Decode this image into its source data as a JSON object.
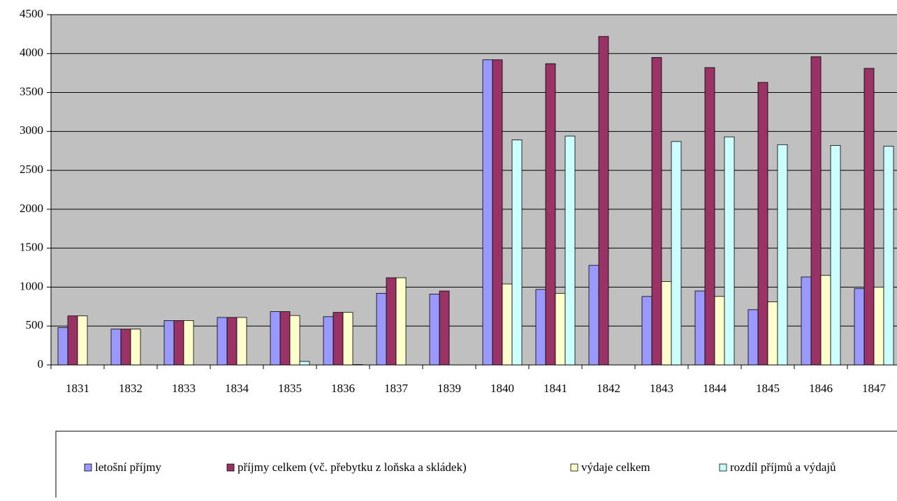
{
  "chart_data": {
    "type": "bar",
    "categories": [
      "1831",
      "1832",
      "1833",
      "1834",
      "1835",
      "1836",
      "1837",
      "1839",
      "1840",
      "1841",
      "1842",
      "1843",
      "1844",
      "1845",
      "1846",
      "1847"
    ],
    "series": [
      {
        "name": "letošní příjmy",
        "color": "#9999ff",
        "values": [
          480,
          460,
          570,
          610,
          685,
          620,
          920,
          910,
          3920,
          970,
          1280,
          880,
          950,
          710,
          1130,
          980
        ]
      },
      {
        "name": "příjmy celkem (vč. přebytku z loňska a skládek)",
        "color": "#993366",
        "values": [
          630,
          460,
          570,
          610,
          685,
          675,
          1120,
          950,
          3920,
          3870,
          4220,
          3950,
          3820,
          3630,
          3960,
          3810
        ]
      },
      {
        "name": "výdaje celkem",
        "color": "#ffffcc",
        "values": [
          630,
          460,
          570,
          610,
          635,
          675,
          1120,
          0,
          1040,
          920,
          0,
          1070,
          880,
          810,
          1150,
          1000
        ]
      },
      {
        "name": "rozdíl příjmů a výdajů",
        "color": "#ccffff",
        "values": [
          0,
          0,
          0,
          0,
          45,
          5,
          0,
          0,
          2890,
          2940,
          0,
          2870,
          2930,
          2830,
          2820,
          2810
        ]
      }
    ],
    "ylim": [
      0,
      4500
    ],
    "yticks": [
      0,
      500,
      1000,
      1500,
      2000,
      2500,
      3000,
      3500,
      4000,
      4500
    ],
    "grid": true,
    "legend": "bottom"
  }
}
